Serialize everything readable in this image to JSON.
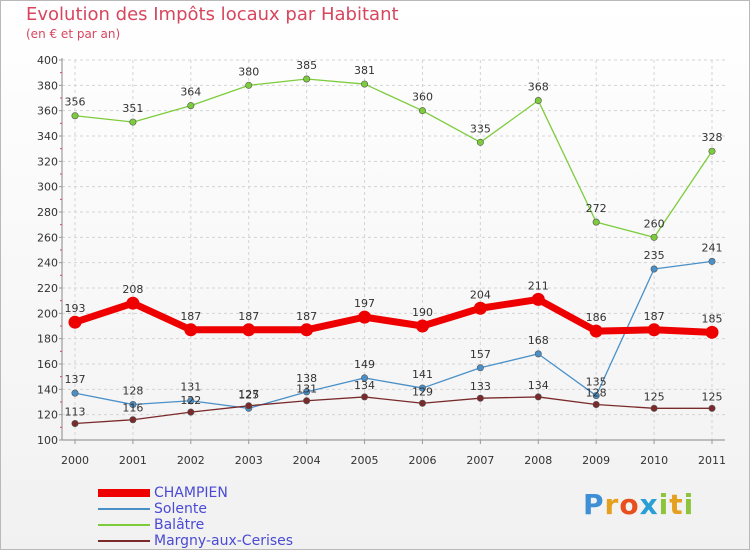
{
  "title": "Evolution des Impôts locaux par Habitant",
  "subtitle": "(en € et par an)",
  "logo": {
    "letters": [
      "P",
      "r",
      "o",
      "x",
      "i",
      "t",
      "i"
    ],
    "colors": [
      "#3e8fd6",
      "#e6a020",
      "#e84f1c",
      "#2a9fd6",
      "#8cc43c",
      "#e6a020",
      "#8cc43c"
    ]
  },
  "chart_data": {
    "type": "line",
    "title": "Evolution des Impôts locaux par Habitant",
    "subtitle": "(en € et par an)",
    "x": [
      "2000",
      "2001",
      "2002",
      "2003",
      "2004",
      "2005",
      "2006",
      "2007",
      "2008",
      "2009",
      "2010",
      "2011"
    ],
    "ylim": [
      100,
      400
    ],
    "yticks": [
      "100",
      "120",
      "140",
      "160",
      "180",
      "200",
      "220",
      "240",
      "260",
      "280",
      "300",
      "320",
      "340",
      "360",
      "380",
      "400"
    ],
    "grid": true,
    "legend_position": "bottom-left",
    "series": [
      {
        "name": "CHAMPIEN",
        "color": "#ee0000",
        "emphasis": true,
        "values": [
          193,
          208,
          187,
          187,
          187,
          197,
          190,
          204,
          211,
          186,
          187,
          185
        ],
        "labels": [
          "193",
          "208",
          "187",
          "187",
          "187",
          "197",
          "190",
          "204",
          "211",
          "186",
          "187",
          "185"
        ]
      },
      {
        "name": "Solente",
        "color": "#4a90c8",
        "values": [
          137,
          128,
          131,
          125,
          138,
          149,
          141,
          157,
          168,
          135,
          235,
          241
        ],
        "labels": [
          "137",
          "128",
          "131",
          "125",
          "138",
          "149",
          "141",
          "157",
          "168",
          "135",
          "235",
          "241"
        ]
      },
      {
        "name": "Balâtre",
        "color": "#7ccc3c",
        "values": [
          356,
          351,
          364,
          380,
          385,
          381,
          360,
          335,
          368,
          272,
          260,
          328
        ],
        "labels": [
          "356",
          "351",
          "364",
          "380",
          "385",
          "381",
          "360",
          "335",
          "368",
          "272",
          "260",
          "328"
        ]
      },
      {
        "name": "Margny-aux-Cerises",
        "color": "#7a2a2a",
        "values": [
          113,
          116,
          122,
          127,
          131,
          134,
          129,
          133,
          134,
          128,
          125,
          125
        ],
        "labels": [
          "113",
          "116",
          "122",
          "127",
          "131",
          "134",
          "129",
          "133",
          "134",
          "128",
          "125",
          "125"
        ]
      }
    ]
  }
}
